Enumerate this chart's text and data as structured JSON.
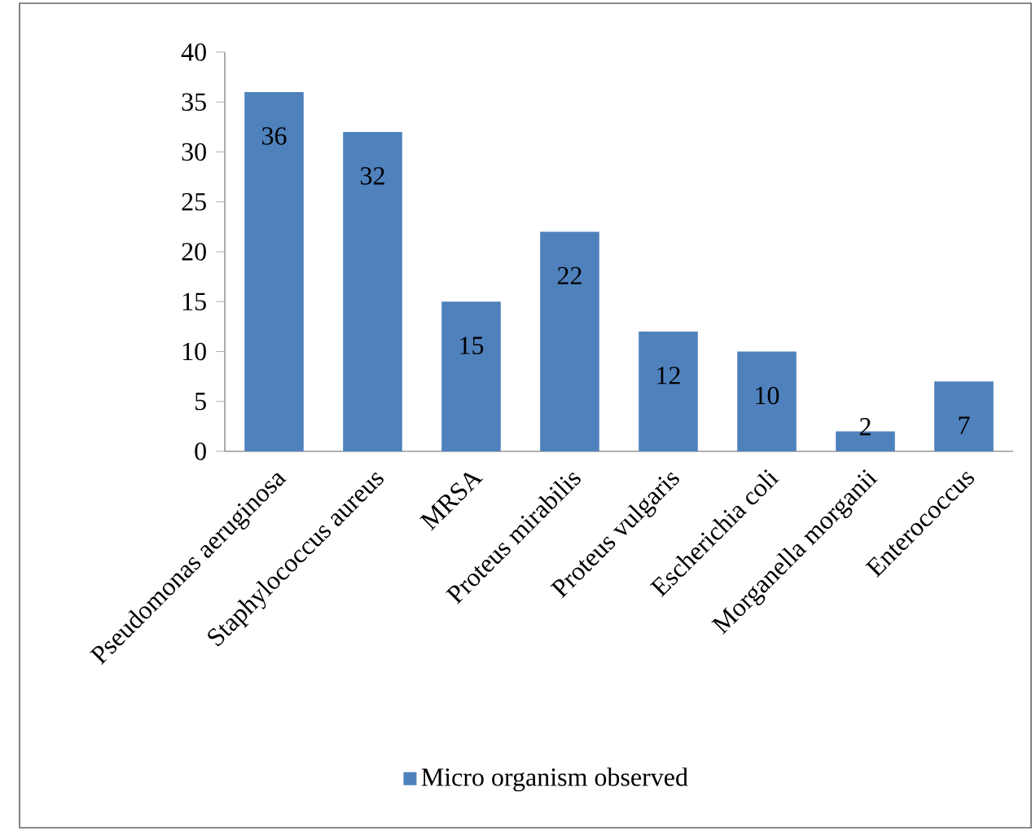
{
  "chart_data": {
    "type": "bar",
    "categories": [
      "Pseudomonas aeruginosa",
      "Staphylococcus aureus",
      "MRSA",
      "Proteus mirabilis",
      "Proteus vulgaris",
      "Escherichia coli",
      "Morganella morganii",
      "Enterococcus"
    ],
    "series": [
      {
        "name": "Micro organism observed",
        "color": "#4f81bd",
        "values": [
          36,
          32,
          15,
          22,
          12,
          10,
          2,
          7
        ]
      }
    ],
    "ylim": [
      0,
      40
    ],
    "yticks": [
      0,
      5,
      10,
      15,
      20,
      25,
      30,
      35,
      40
    ],
    "data_labels": true,
    "grid": false,
    "legend": "bottom"
  }
}
